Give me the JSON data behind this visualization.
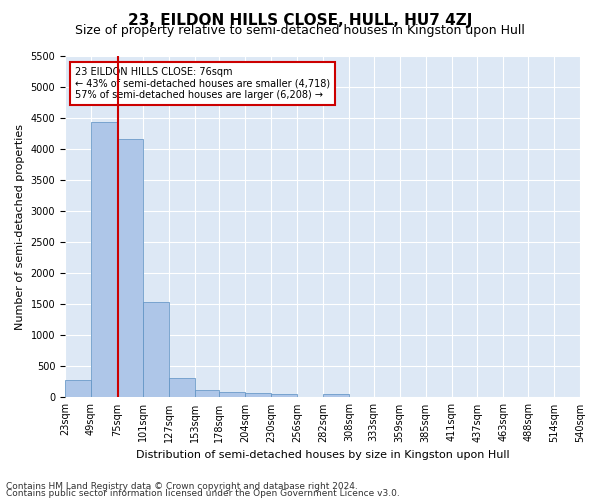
{
  "title": "23, EILDON HILLS CLOSE, HULL, HU7 4ZJ",
  "subtitle": "Size of property relative to semi-detached houses in Kingston upon Hull",
  "xlabel": "Distribution of semi-detached houses by size in Kingston upon Hull",
  "ylabel": "Number of semi-detached properties",
  "footnote1": "Contains HM Land Registry data © Crown copyright and database right 2024.",
  "footnote2": "Contains public sector information licensed under the Open Government Licence v3.0.",
  "bin_edges": [
    23,
    49,
    75,
    101,
    127,
    153,
    178,
    204,
    230,
    256,
    282,
    308,
    333,
    359,
    385,
    411,
    437,
    463,
    488,
    514,
    540
  ],
  "bar_values": [
    280,
    4440,
    4170,
    1540,
    320,
    120,
    80,
    70,
    60,
    0,
    60,
    0,
    0,
    0,
    0,
    0,
    0,
    0,
    0,
    0
  ],
  "bin_labels": [
    "23sqm",
    "49sqm",
    "75sqm",
    "101sqm",
    "127sqm",
    "153sqm",
    "178sqm",
    "204sqm",
    "230sqm",
    "256sqm",
    "282sqm",
    "308sqm",
    "333sqm",
    "359sqm",
    "385sqm",
    "411sqm",
    "437sqm",
    "463sqm",
    "488sqm",
    "514sqm",
    "540sqm"
  ],
  "bar_color": "#aec6e8",
  "bar_edge_color": "#5a8fc2",
  "property_line_value": 76,
  "property_line_color": "#cc0000",
  "annotation_text": "23 EILDON HILLS CLOSE: 76sqm\n← 43% of semi-detached houses are smaller (4,718)\n57% of semi-detached houses are larger (6,208) →",
  "annotation_box_color": "#ffffff",
  "annotation_box_edge": "#cc0000",
  "ylim": [
    0,
    5500
  ],
  "yticks": [
    0,
    500,
    1000,
    1500,
    2000,
    2500,
    3000,
    3500,
    4000,
    4500,
    5000,
    5500
  ],
  "background_color": "#dde8f5",
  "grid_color": "#ffffff",
  "title_fontsize": 11,
  "subtitle_fontsize": 9,
  "axis_label_fontsize": 8,
  "tick_fontsize": 7,
  "footnote_fontsize": 6.5
}
